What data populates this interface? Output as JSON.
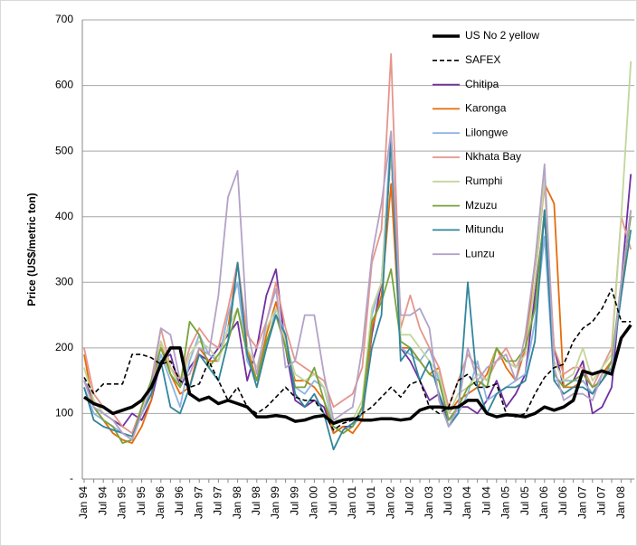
{
  "chart_data": {
    "type": "line",
    "y_label": "Price (US$/metric ton)",
    "categories": [
      "Jan 94",
      null,
      "Jul 94",
      null,
      "Jan 95",
      null,
      "Jul 95",
      null,
      "Jan 96",
      null,
      "Jul 96",
      null,
      "Jan 97",
      null,
      "Jul 97",
      null,
      "Jan 98",
      null,
      "Jul 98",
      null,
      "Jan 99",
      null,
      "Jul 99",
      null,
      "Jan 00",
      null,
      "Jul 00",
      null,
      "Jan 01",
      null,
      "Jul 01",
      null,
      "Jan 02",
      null,
      "Jul 02",
      null,
      "Jan 03",
      null,
      "Jul 03",
      null,
      "Jan 04",
      null,
      "Jul 04",
      null,
      "Jan 05",
      null,
      "Jul 05",
      null,
      "Jan 06",
      null,
      "Jul 06",
      null,
      "Jan 07",
      null,
      "Jul 07",
      null,
      "Jan 08",
      null
    ],
    "ylim": [
      0,
      700
    ],
    "yticks": [
      {
        "value": 0,
        "label": "-"
      },
      100,
      200,
      300,
      400,
      500,
      600,
      700
    ],
    "grid": true,
    "legend": "top-right",
    "series": [
      {
        "name": "US No 2 yellow",
        "color": "#000000",
        "style": "thick",
        "values": [
          125,
          115,
          110,
          100,
          105,
          110,
          120,
          140,
          175,
          200,
          200,
          130,
          120,
          125,
          115,
          120,
          115,
          110,
          95,
          95,
          97,
          95,
          88,
          90,
          95,
          97,
          85,
          90,
          92,
          90,
          90,
          92,
          92,
          90,
          92,
          105,
          110,
          110,
          108,
          110,
          120,
          120,
          100,
          95,
          98,
          97,
          95,
          100,
          110,
          105,
          110,
          120,
          165,
          160,
          165,
          160,
          215,
          235
        ]
      },
      {
        "name": "SAFEX",
        "color": "#000000",
        "style": "dashed",
        "values": [
          155,
          130,
          145,
          145,
          145,
          190,
          190,
          185,
          175,
          180,
          150,
          140,
          145,
          180,
          150,
          120,
          140,
          110,
          100,
          110,
          125,
          140,
          125,
          120,
          120,
          100,
          75,
          85,
          90,
          100,
          110,
          125,
          140,
          125,
          145,
          150,
          110,
          100,
          110,
          150,
          160,
          140,
          140,
          145,
          100,
          95,
          100,
          130,
          155,
          170,
          175,
          210,
          230,
          240,
          260,
          290,
          240,
          240
        ]
      },
      {
        "name": "Chitipa",
        "color": "#7030a0",
        "style": "solid",
        "values": [
          150,
          120,
          100,
          90,
          80,
          100,
          90,
          120,
          180,
          190,
          140,
          170,
          190,
          180,
          200,
          220,
          240,
          150,
          200,
          280,
          320,
          200,
          120,
          110,
          120,
          110,
          70,
          80,
          80,
          110,
          220,
          300,
          500,
          200,
          180,
          150,
          120,
          130,
          90,
          110,
          110,
          100,
          120,
          150,
          110,
          130,
          160,
          280,
          400,
          200,
          140,
          150,
          180,
          100,
          110,
          140,
          300,
          465
        ]
      },
      {
        "name": "Karonga",
        "color": "#e46c0a",
        "style": "solid",
        "values": [
          190,
          110,
          90,
          70,
          60,
          55,
          80,
          120,
          210,
          160,
          130,
          140,
          200,
          180,
          180,
          230,
          330,
          200,
          150,
          220,
          270,
          200,
          150,
          150,
          140,
          120,
          70,
          80,
          70,
          90,
          230,
          280,
          450,
          200,
          200,
          180,
          160,
          170,
          100,
          120,
          130,
          140,
          160,
          200,
          170,
          150,
          200,
          330,
          450,
          420,
          140,
          140,
          150,
          130,
          160,
          180,
          290,
          410
        ]
      },
      {
        "name": "Lilongwe",
        "color": "#8eb4e3",
        "style": "solid",
        "values": [
          140,
          100,
          90,
          80,
          70,
          60,
          100,
          130,
          190,
          150,
          110,
          180,
          220,
          190,
          180,
          250,
          300,
          180,
          150,
          200,
          260,
          220,
          140,
          130,
          150,
          140,
          80,
          70,
          80,
          100,
          250,
          300,
          530,
          200,
          190,
          180,
          200,
          150,
          90,
          100,
          130,
          180,
          120,
          130,
          140,
          150,
          160,
          240,
          370,
          150,
          150,
          150,
          150,
          130,
          160,
          170,
          300,
          410
        ]
      },
      {
        "name": "Nkhata Bay",
        "color": "#e6958a",
        "style": "solid",
        "values": [
          200,
          130,
          110,
          100,
          80,
          70,
          110,
          150,
          230,
          170,
          150,
          200,
          230,
          210,
          200,
          260,
          330,
          220,
          200,
          240,
          300,
          230,
          180,
          170,
          160,
          150,
          110,
          120,
          130,
          170,
          330,
          380,
          648,
          230,
          280,
          230,
          200,
          170,
          110,
          150,
          190,
          170,
          150,
          180,
          200,
          170,
          200,
          300,
          450,
          200,
          160,
          170,
          170,
          140,
          170,
          200,
          400,
          350
        ]
      },
      {
        "name": "Rumphi",
        "color": "#c3d69b",
        "style": "solid",
        "values": [
          170,
          120,
          100,
          90,
          70,
          65,
          100,
          140,
          210,
          170,
          140,
          190,
          210,
          200,
          180,
          230,
          260,
          200,
          170,
          230,
          260,
          210,
          160,
          150,
          160,
          140,
          90,
          90,
          90,
          120,
          260,
          300,
          500,
          220,
          220,
          200,
          180,
          160,
          100,
          130,
          140,
          160,
          150,
          200,
          180,
          170,
          190,
          300,
          460,
          180,
          150,
          160,
          200,
          150,
          170,
          190,
          400,
          637
        ]
      },
      {
        "name": "Mzuzu",
        "color": "#77a33b",
        "style": "solid",
        "values": [
          150,
          110,
          90,
          80,
          55,
          60,
          110,
          150,
          200,
          160,
          140,
          240,
          220,
          170,
          190,
          210,
          260,
          190,
          150,
          210,
          250,
          200,
          140,
          140,
          170,
          120,
          80,
          70,
          80,
          110,
          240,
          270,
          320,
          210,
          200,
          180,
          160,
          150,
          90,
          110,
          140,
          150,
          140,
          200,
          180,
          180,
          200,
          260,
          410,
          160,
          140,
          150,
          160,
          140,
          150,
          180,
          300,
          400
        ]
      },
      {
        "name": "Mitundu",
        "color": "#31859c",
        "style": "solid",
        "values": [
          140,
          90,
          80,
          75,
          70,
          65,
          100,
          130,
          180,
          110,
          100,
          140,
          190,
          170,
          150,
          210,
          330,
          190,
          140,
          200,
          250,
          220,
          130,
          110,
          130,
          100,
          45,
          75,
          85,
          100,
          200,
          250,
          520,
          180,
          200,
          150,
          180,
          130,
          80,
          100,
          300,
          140,
          100,
          130,
          140,
          140,
          150,
          210,
          410,
          150,
          130,
          140,
          140,
          130,
          150,
          170,
          280,
          380
        ]
      },
      {
        "name": "Lunzu",
        "color": "#b3a2c7",
        "style": "solid",
        "values": [
          150,
          110,
          100,
          90,
          70,
          60,
          100,
          140,
          230,
          220,
          150,
          160,
          200,
          190,
          280,
          430,
          470,
          230,
          160,
          240,
          290,
          170,
          180,
          250,
          250,
          160,
          90,
          100,
          110,
          200,
          340,
          420,
          530,
          250,
          250,
          260,
          230,
          120,
          80,
          110,
          200,
          150,
          170,
          180,
          190,
          150,
          220,
          330,
          480,
          170,
          120,
          130,
          130,
          120,
          160,
          170,
          300,
          410
        ]
      }
    ]
  }
}
